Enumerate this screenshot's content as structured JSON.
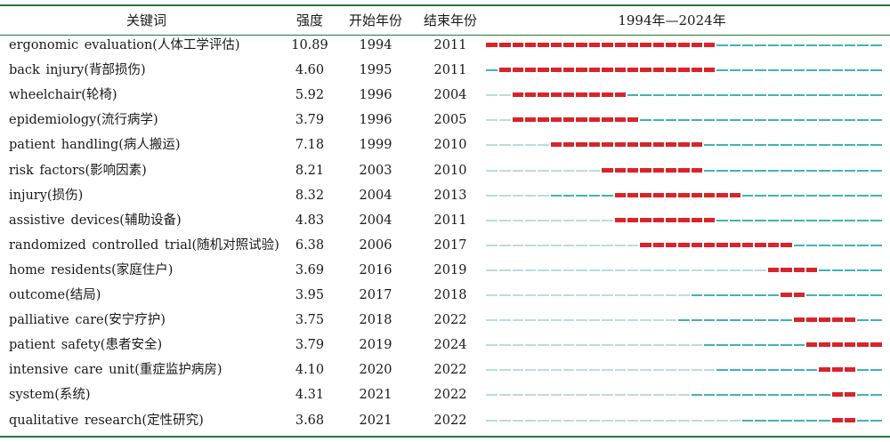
{
  "header": {
    "keyword": "关键词",
    "strength": "强度",
    "begin": "开始年份",
    "end": "结束年份",
    "timeline": "1994年—2024年"
  },
  "timeline_range": {
    "start": 1994,
    "end": 2024
  },
  "colors": {
    "rule": "#1f7a3a",
    "burst": "#d8242a",
    "active": "#41b3b5",
    "inactive": "#b9dde0"
  },
  "rows": [
    {
      "keyword": "ergonomic evaluation(人体工学评估)",
      "strength": "10.89",
      "begin": "1994",
      "end": "2011",
      "first_year": 1994
    },
    {
      "keyword": "back injury(背部损伤)",
      "strength": "4.60",
      "begin": "1995",
      "end": "2011",
      "first_year": 1994
    },
    {
      "keyword": "wheelchair(轮椅)",
      "strength": "5.92",
      "begin": "1996",
      "end": "2004",
      "first_year": 1996
    },
    {
      "keyword": "epidemiology(流行病学)",
      "strength": "3.79",
      "begin": "1996",
      "end": "2005",
      "first_year": 1996
    },
    {
      "keyword": "patient handling(病人搬运)",
      "strength": "7.18",
      "begin": "1999",
      "end": "2010",
      "first_year": 1999
    },
    {
      "keyword": "risk factors(影响因素)",
      "strength": "8.21",
      "begin": "2003",
      "end": "2010",
      "first_year": 2003
    },
    {
      "keyword": "injury(损伤)",
      "strength": "8.32",
      "begin": "2004",
      "end": "2013",
      "first_year": 1999
    },
    {
      "keyword": "assistive devices(辅助设备)",
      "strength": "4.83",
      "begin": "2004",
      "end": "2011",
      "first_year": 2004
    },
    {
      "keyword": "randomized controlled trial(随机对照试验)",
      "strength": "6.38",
      "begin": "2006",
      "end": "2017",
      "first_year": 2006
    },
    {
      "keyword": "home residents(家庭住户)",
      "strength": "3.69",
      "begin": "2016",
      "end": "2019",
      "first_year": 2016
    },
    {
      "keyword": "outcome(结局)",
      "strength": "3.95",
      "begin": "2017",
      "end": "2018",
      "first_year": 2010
    },
    {
      "keyword": "palliative care(安宁疗护)",
      "strength": "3.75",
      "begin": "2018",
      "end": "2022",
      "first_year": 2009
    },
    {
      "keyword": "patient safety(患者安全)",
      "strength": "3.79",
      "begin": "2019",
      "end": "2024",
      "first_year": 2011
    },
    {
      "keyword": "intensive care unit(重症监护病房)",
      "strength": "4.10",
      "begin": "2020",
      "end": "2022",
      "first_year": 2012
    },
    {
      "keyword": "system(系统)",
      "strength": "4.31",
      "begin": "2021",
      "end": "2022",
      "first_year": 2010
    },
    {
      "keyword": "qualitative research(定性研究)",
      "strength": "3.68",
      "begin": "2021",
      "end": "2022",
      "first_year": 2014
    }
  ]
}
